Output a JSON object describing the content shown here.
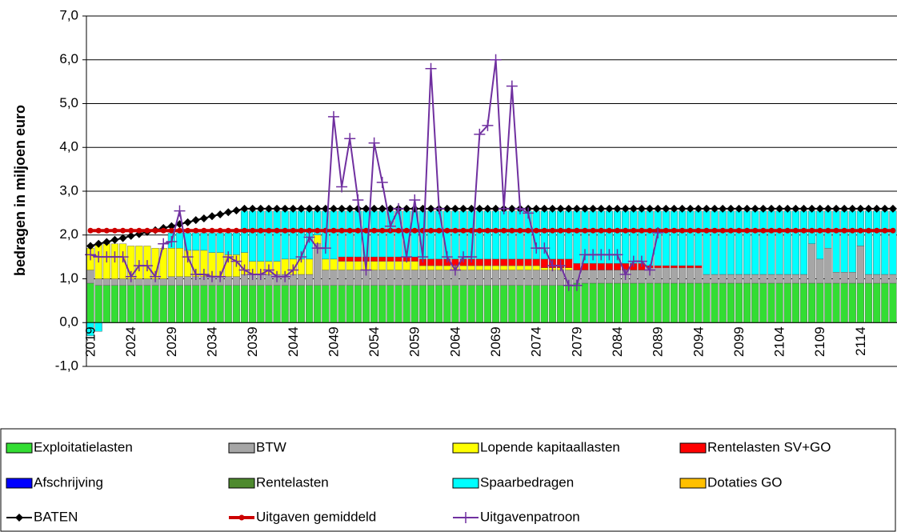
{
  "chart_data": {
    "type": "bar",
    "stacked": true,
    "y_label": "bedragen in miljoen euro",
    "ylim": [
      -1,
      7
    ],
    "yticks": [
      {
        "value": -1,
        "label": "-1,0"
      },
      {
        "value": 0,
        "label": "0,0"
      },
      {
        "value": 1,
        "label": "1,0"
      },
      {
        "value": 2,
        "label": "2,0"
      },
      {
        "value": 3,
        "label": "3,0"
      },
      {
        "value": 4,
        "label": "4,0"
      },
      {
        "value": 5,
        "label": "5,0"
      },
      {
        "value": 6,
        "label": "6,0"
      },
      {
        "value": 7,
        "label": "7,0"
      }
    ],
    "grid": true,
    "categories": [
      "2019",
      null,
      null,
      null,
      null,
      "2024",
      null,
      null,
      null,
      null,
      "2029",
      null,
      null,
      null,
      null,
      "2034",
      null,
      null,
      null,
      null,
      "2039",
      null,
      null,
      null,
      null,
      "2044",
      null,
      null,
      null,
      null,
      "2049",
      null,
      null,
      null,
      null,
      "2054",
      null,
      null,
      null,
      null,
      "2059",
      null,
      null,
      null,
      null,
      "2064",
      null,
      null,
      null,
      null,
      "2069",
      null,
      null,
      null,
      null,
      "2074",
      null,
      null,
      null,
      null,
      "2079",
      null,
      null,
      null,
      null,
      "2084",
      null,
      null,
      null,
      null,
      "2089",
      null,
      null,
      null,
      null,
      "2094",
      null,
      null,
      null,
      null,
      "2099",
      null,
      null,
      null,
      null,
      "2104",
      null,
      null,
      null,
      null,
      "2109",
      null,
      null,
      null,
      null,
      "2114",
      null,
      null,
      null,
      null
    ],
    "series": [
      {
        "name": "Exploitatielasten",
        "type": "bar",
        "color": "#33dd33",
        "values": [
          0.9,
          0.85,
          0.85,
          0.85,
          0.85,
          0.85,
          0.85,
          0.85,
          0.85,
          0.85,
          0.85,
          0.85,
          0.85,
          0.85,
          0.85,
          0.85,
          0.85,
          0.85,
          0.85,
          0.85,
          0.85,
          0.85,
          0.85,
          0.85,
          0.85,
          0.85,
          0.85,
          0.85,
          0.85,
          0.85,
          0.85,
          0.85,
          0.85,
          0.85,
          0.85,
          0.85,
          0.85,
          0.85,
          0.85,
          0.85,
          0.85,
          0.85,
          0.85,
          0.85,
          0.85,
          0.85,
          0.85,
          0.85,
          0.85,
          0.85,
          0.85,
          0.85,
          0.85,
          0.85,
          0.85,
          0.85,
          0.85,
          0.85,
          0.85,
          0.85,
          0.9,
          0.9,
          0.9,
          0.9,
          0.9,
          0.9,
          0.9,
          0.9,
          0.9,
          0.9,
          0.9,
          0.9,
          0.9,
          0.9,
          0.9,
          0.9,
          0.9,
          0.9,
          0.9,
          0.9,
          0.9,
          0.9,
          0.9,
          0.9,
          0.9,
          0.9,
          0.9,
          0.9,
          0.9,
          0.9,
          0.9,
          0.9,
          0.9,
          0.9,
          0.9,
          0.9,
          0.9,
          0.9,
          0.9,
          0.9
        ]
      },
      {
        "name": "BTW",
        "type": "bar",
        "color": "#a6a6a6",
        "values": [
          0.3,
          0.15,
          0.15,
          0.15,
          0.15,
          0.15,
          0.15,
          0.15,
          0.15,
          0.15,
          0.2,
          0.2,
          0.2,
          0.2,
          0.2,
          0.2,
          0.2,
          0.2,
          0.2,
          0.25,
          0.25,
          0.25,
          0.25,
          0.25,
          0.25,
          0.25,
          0.25,
          0.25,
          0.95,
          0.35,
          0.35,
          0.35,
          0.35,
          0.35,
          0.35,
          0.35,
          0.35,
          0.35,
          0.35,
          0.35,
          0.35,
          0.35,
          0.35,
          0.35,
          0.35,
          0.35,
          0.35,
          0.35,
          0.35,
          0.35,
          0.35,
          0.35,
          0.35,
          0.35,
          0.35,
          0.35,
          0.35,
          0.35,
          0.35,
          0.35,
          0.3,
          0.3,
          0.3,
          0.3,
          0.3,
          0.3,
          0.3,
          0.3,
          0.3,
          0.35,
          0.35,
          0.35,
          0.35,
          0.35,
          0.35,
          0.35,
          0.2,
          0.2,
          0.2,
          0.2,
          0.2,
          0.2,
          0.2,
          0.2,
          0.2,
          0.2,
          0.2,
          0.2,
          0.2,
          0.9,
          0.55,
          0.8,
          0.25,
          0.25,
          0.25,
          0.85,
          0.2,
          0.2,
          0.2,
          0.2
        ]
      },
      {
        "name": "Lopende kapitaallasten",
        "type": "bar",
        "color": "#ffff00",
        "values": [
          0.5,
          0.8,
          0.8,
          0.8,
          0.8,
          0.75,
          0.75,
          0.75,
          0.7,
          0.7,
          0.65,
          0.65,
          0.6,
          0.6,
          0.6,
          0.55,
          0.55,
          0.5,
          0.5,
          0.5,
          0.3,
          0.3,
          0.3,
          0.3,
          0.35,
          0.35,
          0.35,
          0.35,
          0.2,
          0.25,
          0.25,
          0.2,
          0.2,
          0.2,
          0.2,
          0.2,
          0.2,
          0.2,
          0.2,
          0.2,
          0.2,
          0.1,
          0.1,
          0.1,
          0.1,
          0.1,
          0.1,
          0.1,
          0.1,
          0.1,
          0.1,
          0.1,
          0.1,
          0.1,
          0.1,
          0.1,
          0.05,
          0.05,
          0.05,
          0.05,
          0,
          0,
          0,
          0,
          0,
          0,
          0,
          0,
          0,
          0,
          0,
          0,
          0,
          0,
          0,
          0,
          0,
          0,
          0,
          0,
          0,
          0,
          0,
          0,
          0,
          0,
          0,
          0,
          0,
          0,
          0,
          0,
          0,
          0,
          0,
          0,
          0,
          0,
          0,
          0
        ]
      },
      {
        "name": "Rentelasten SV+GO",
        "type": "bar",
        "color": "#ff0000",
        "values": [
          0,
          0,
          0,
          0,
          0,
          0,
          0,
          0,
          0,
          0,
          0,
          0,
          0,
          0,
          0,
          0,
          0,
          0,
          0,
          0,
          0,
          0,
          0,
          0,
          0,
          0,
          0,
          0,
          0,
          0,
          0,
          0.1,
          0.1,
          0.1,
          0.1,
          0.1,
          0.1,
          0.1,
          0.1,
          0.1,
          0.1,
          0.15,
          0.15,
          0.15,
          0.15,
          0.15,
          0.15,
          0.15,
          0.15,
          0.15,
          0.15,
          0.15,
          0.15,
          0.15,
          0.15,
          0.15,
          0.2,
          0.2,
          0.2,
          0.2,
          0.15,
          0.15,
          0.15,
          0.15,
          0.15,
          0.15,
          0.15,
          0.15,
          0.15,
          0.05,
          0.05,
          0.05,
          0.05,
          0.05,
          0.05,
          0.05,
          0,
          0,
          0,
          0,
          0,
          0,
          0,
          0,
          0,
          0,
          0,
          0,
          0,
          0,
          0,
          0,
          0,
          0,
          0,
          0,
          0,
          0,
          0,
          0
        ]
      },
      {
        "name": "Afschrijving",
        "type": "bar",
        "color": "#0000ff",
        "values": [
          0,
          0,
          0,
          0,
          0,
          0,
          0,
          0,
          0,
          0,
          0,
          0,
          0,
          0,
          0,
          0,
          0,
          0,
          0,
          0,
          0,
          0,
          0,
          0,
          0,
          0,
          0,
          0,
          0,
          0,
          0,
          0,
          0,
          0,
          0,
          0,
          0,
          0,
          0,
          0,
          0,
          0,
          0,
          0,
          0,
          0,
          0,
          0,
          0,
          0,
          0,
          0,
          0,
          0,
          0,
          0,
          0,
          0,
          0,
          0,
          0,
          0,
          0,
          0,
          0,
          0,
          0,
          0,
          0,
          0,
          0,
          0,
          0,
          0,
          0,
          0,
          0,
          0,
          0,
          0,
          0,
          0,
          0,
          0,
          0,
          0,
          0,
          0,
          0,
          0,
          0,
          0,
          0,
          0,
          0,
          0,
          0,
          0,
          0,
          0
        ]
      },
      {
        "name": "Rentelasten",
        "type": "bar",
        "color": "#4e8a2e",
        "values": [
          0,
          0,
          0,
          0,
          0,
          0,
          0,
          0,
          0,
          0,
          0,
          0,
          0,
          0,
          0,
          0,
          0,
          0,
          0,
          0,
          0,
          0,
          0,
          0,
          0,
          0,
          0,
          0,
          0,
          0,
          0,
          0,
          0,
          0,
          0,
          0,
          0,
          0,
          0,
          0,
          0,
          0,
          0,
          0,
          0,
          0,
          0,
          0,
          0,
          0,
          0,
          0,
          0,
          0,
          0,
          0,
          0,
          0,
          0,
          0,
          0,
          0,
          0,
          0,
          0,
          0,
          0,
          0,
          0,
          0,
          0,
          0,
          0,
          0,
          0,
          0,
          0,
          0,
          0,
          0,
          0,
          0,
          0,
          0,
          0,
          0,
          0,
          0,
          0,
          0,
          0,
          0,
          0,
          0,
          0,
          0,
          0,
          0,
          0,
          0
        ]
      },
      {
        "name": "Spaarbedragen",
        "type": "bar",
        "color": "#00ffff",
        "values": [
          -0.3,
          -0.2,
          0,
          0,
          0,
          0,
          0,
          0,
          0,
          0,
          0.35,
          0.35,
          0.4,
          0.4,
          0.4,
          0.45,
          0.45,
          0.5,
          0.5,
          0.95,
          1.15,
          1.15,
          1.15,
          1.15,
          1.1,
          1.1,
          1.1,
          1.1,
          0.55,
          1.1,
          1.1,
          1.05,
          1.05,
          1.05,
          1.05,
          1.05,
          1.05,
          1.05,
          1.05,
          1.05,
          1.05,
          1.1,
          1.1,
          1.1,
          1.1,
          1.1,
          1.1,
          1.1,
          1.1,
          1.1,
          1.1,
          1.1,
          1.1,
          1.1,
          1.1,
          1.1,
          1.1,
          1.1,
          1.1,
          1.1,
          1.2,
          1.2,
          1.2,
          1.2,
          1.2,
          1.2,
          1.2,
          1.2,
          1.2,
          1.25,
          1.25,
          1.25,
          1.25,
          1.25,
          1.25,
          1.25,
          1.45,
          1.45,
          1.45,
          1.45,
          1.45,
          1.45,
          1.45,
          1.45,
          1.45,
          1.45,
          1.45,
          1.45,
          1.45,
          0.75,
          1.1,
          0.85,
          1.4,
          1.4,
          1.4,
          0.8,
          1.45,
          1.45,
          1.45,
          1.45
        ]
      },
      {
        "name": "Dotaties GO",
        "type": "bar",
        "color": "#ffc000",
        "values": [
          0,
          0,
          0,
          0,
          0,
          0,
          0,
          0,
          0,
          0,
          0,
          0,
          0,
          0,
          0,
          0,
          0,
          0,
          0,
          0,
          0,
          0,
          0,
          0,
          0,
          0,
          0,
          0,
          0,
          0,
          0,
          0,
          0,
          0,
          0,
          0,
          0,
          0,
          0,
          0,
          0,
          0,
          0,
          0,
          0,
          0,
          0,
          0,
          0,
          0,
          0,
          0,
          0,
          0,
          0,
          0,
          0,
          0,
          0,
          0,
          0,
          0,
          0,
          0,
          0,
          0,
          0,
          0,
          0,
          0,
          0,
          0,
          0,
          0,
          0,
          0,
          0,
          0,
          0,
          0,
          0,
          0,
          0,
          0,
          0,
          0,
          0,
          0,
          0,
          0,
          0,
          0,
          0,
          0,
          0,
          0,
          0,
          0,
          0,
          0
        ]
      },
      {
        "name": "BATEN",
        "type": "line",
        "marker": "diamond",
        "color": "#000000",
        "values": [
          1.75,
          1.8,
          1.84,
          1.89,
          1.93,
          1.98,
          2.02,
          2.07,
          2.11,
          2.16,
          2.2,
          2.25,
          2.29,
          2.34,
          2.38,
          2.43,
          2.47,
          2.52,
          2.56,
          2.6,
          2.6,
          2.6,
          2.6,
          2.6,
          2.6,
          2.6,
          2.6,
          2.6,
          2.6,
          2.6,
          2.6,
          2.6,
          2.6,
          2.6,
          2.6,
          2.6,
          2.6,
          2.6,
          2.6,
          2.6,
          2.6,
          2.6,
          2.6,
          2.6,
          2.6,
          2.6,
          2.6,
          2.6,
          2.6,
          2.6,
          2.6,
          2.6,
          2.6,
          2.6,
          2.6,
          2.6,
          2.6,
          2.6,
          2.6,
          2.6,
          2.6,
          2.6,
          2.6,
          2.6,
          2.6,
          2.6,
          2.6,
          2.6,
          2.6,
          2.6,
          2.6,
          2.6,
          2.6,
          2.6,
          2.6,
          2.6,
          2.6,
          2.6,
          2.6,
          2.6,
          2.6,
          2.6,
          2.6,
          2.6,
          2.6,
          2.6,
          2.6,
          2.6,
          2.6,
          2.6,
          2.6,
          2.6,
          2.6,
          2.6,
          2.6,
          2.6,
          2.6,
          2.6,
          2.6,
          2.6
        ]
      },
      {
        "name": "Uitgaven gemiddeld",
        "type": "line",
        "marker": "circle",
        "color": "#cc0000",
        "values": [
          2.1,
          2.1,
          2.1,
          2.1,
          2.1,
          2.1,
          2.1,
          2.1,
          2.1,
          2.1,
          2.1,
          2.1,
          2.1,
          2.1,
          2.1,
          2.1,
          2.1,
          2.1,
          2.1,
          2.1,
          2.1,
          2.1,
          2.1,
          2.1,
          2.1,
          2.1,
          2.1,
          2.1,
          2.1,
          2.1,
          2.1,
          2.1,
          2.1,
          2.1,
          2.1,
          2.1,
          2.1,
          2.1,
          2.1,
          2.1,
          2.1,
          2.1,
          2.1,
          2.1,
          2.1,
          2.1,
          2.1,
          2.1,
          2.1,
          2.1,
          2.1,
          2.1,
          2.1,
          2.1,
          2.1,
          2.1,
          2.1,
          2.1,
          2.1,
          2.1,
          2.1,
          2.1,
          2.1,
          2.1,
          2.1,
          2.1,
          2.1,
          2.1,
          2.1,
          2.1,
          2.1,
          2.1,
          2.1,
          2.1,
          2.1,
          2.1,
          2.1,
          2.1,
          2.1,
          2.1,
          2.1,
          2.1,
          2.1,
          2.1,
          2.1,
          2.1,
          2.1,
          2.1,
          2.1,
          2.1,
          2.1,
          2.1,
          2.1,
          2.1,
          2.1,
          2.1,
          2.1,
          2.1,
          2.1,
          2.1
        ]
      },
      {
        "name": "Uitgavenpatroon",
        "type": "line",
        "marker": "plus",
        "color": "#7030a0",
        "values": [
          1.55,
          1.5,
          1.5,
          1.5,
          1.5,
          1.05,
          1.3,
          1.3,
          1.05,
          1.8,
          1.85,
          2.55,
          1.5,
          1.1,
          1.1,
          1.05,
          1.05,
          1.5,
          1.4,
          1.2,
          1.1,
          1.1,
          1.2,
          1.05,
          1.05,
          1.2,
          1.5,
          1.95,
          1.7,
          1.7,
          4.7,
          3.1,
          4.2,
          2.8,
          1.2,
          4.1,
          3.2,
          2.2,
          2.6,
          1.5,
          2.8,
          1.5,
          5.8,
          2.6,
          1.5,
          1.2,
          1.5,
          1.5,
          4.3,
          4.5,
          6.0,
          2.6,
          5.4,
          2.6,
          2.5,
          1.7,
          1.7,
          1.3,
          1.3,
          0.85,
          0.85,
          1.55,
          1.55,
          1.55,
          1.55,
          1.55,
          1.1,
          1.4,
          1.4,
          1.2,
          2.05,
          null,
          null,
          null,
          null,
          null,
          null,
          null,
          null,
          null,
          null,
          null,
          null,
          null,
          null,
          null,
          null,
          null,
          null,
          null,
          null,
          null,
          null,
          null,
          null,
          null,
          null,
          null,
          null,
          null
        ]
      }
    ]
  }
}
